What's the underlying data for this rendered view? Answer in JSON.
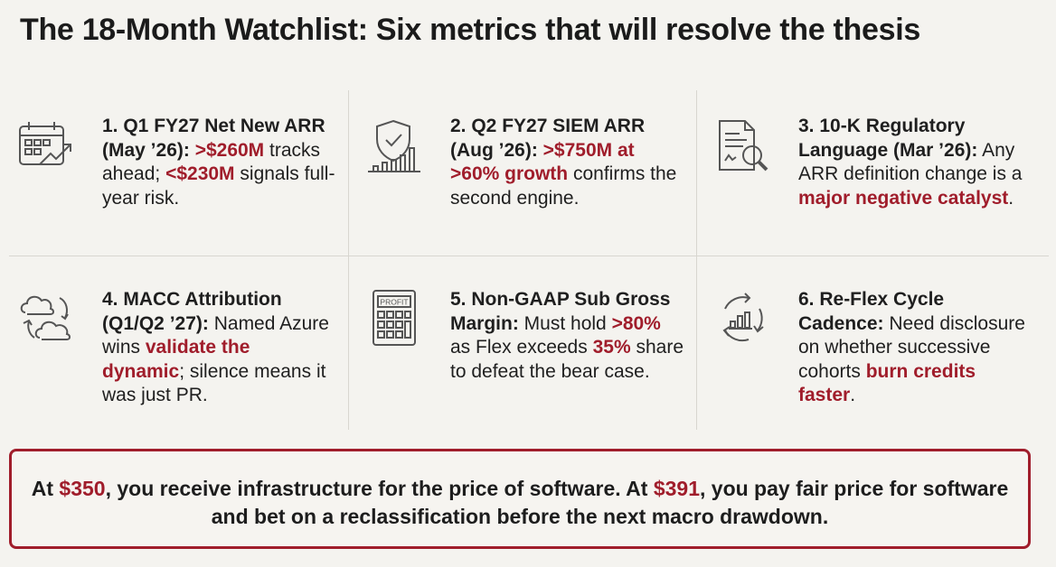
{
  "title": "The 18-Month Watchlist: Six metrics that will resolve the thesis",
  "cards": [
    {
      "icon": "calendar-growth-icon",
      "heading": "1. Q1 FY27 Net New ARR (May ’26):",
      "hl1": ">$260M",
      "mid": "tracks ahead;",
      "hl2": "<$230M",
      "tail": "signals full-year risk."
    },
    {
      "icon": "shield-growth-chart-icon",
      "heading": "2. Q2 FY27 SIEM ARR (Aug ’26):",
      "hl1": ">$750M at >60% growth",
      "tail": "confirms the second engine."
    },
    {
      "icon": "document-magnifier-icon",
      "heading": "3. 10-K Regulatory Language (Mar ’26):",
      "lead": "Any ARR definition change is a",
      "hl1": "major negative catalyst",
      "tail": "."
    },
    {
      "icon": "cloud-sync-icon",
      "heading": "4. MACC Attribution (Q1/Q2 ’27):",
      "lead": "Named Azure wins",
      "hl1": "validate the dynamic",
      "tail": "; silence means it was just PR."
    },
    {
      "icon": "profit-calculator-icon",
      "icon_label": "PROFIT",
      "heading": "5. Non-GAAP Sub Gross Margin:",
      "lead": "Must hold",
      "hl1": ">80%",
      "mid": "as Flex exceeds",
      "hl2": "35%",
      "tail": "share to defeat the bear case."
    },
    {
      "icon": "refresh-cycle-chart-icon",
      "heading": "6. Re-Flex Cycle Cadence:",
      "lead": "Need disclosure on whether successive cohorts",
      "hl1": "burn credits faster",
      "tail": "."
    }
  ],
  "footer": {
    "p1": "At",
    "price1": "$350",
    "p2": ", you receive infrastructure for the price of software. At",
    "price2": "$391",
    "p3": ", you pay fair price for software and bet on a reclassification before the next macro drawdown."
  },
  "colors": {
    "accent": "#a01d2b",
    "text": "#1d1d1d",
    "background": "#f4f3ef",
    "divider": "#d8d6d0"
  }
}
